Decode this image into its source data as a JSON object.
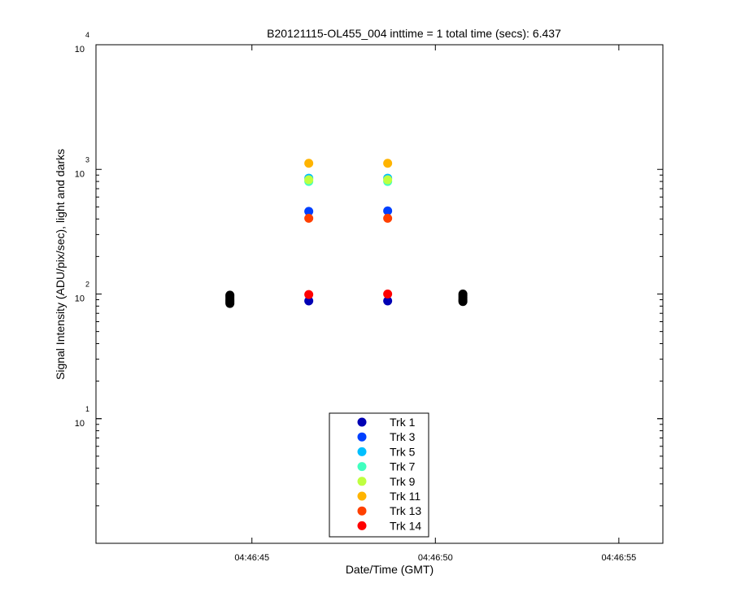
{
  "chart_data": {
    "type": "scatter",
    "title": "B20121115-OL455_004 inttime = 1 total time (secs): 6.437",
    "xlabel": "Date/Time (GMT)",
    "ylabel": "Signal Intensity (ADU/pix/sec), light and darks",
    "y_scale": "log",
    "ylim": [
      1,
      10000
    ],
    "x_units": "seconds after 04:46:00 GMT",
    "xlim": [
      40.75,
      56.2
    ],
    "x_ticks": [
      {
        "value": 45,
        "label": "04:46:45"
      },
      {
        "value": 50,
        "label": "04:46:50"
      },
      {
        "value": 55,
        "label": "04:46:55"
      }
    ],
    "y_ticks": [
      {
        "value": 10,
        "base": "10",
        "exp": "1"
      },
      {
        "value": 100,
        "base": "10",
        "exp": "2"
      },
      {
        "value": 1000,
        "base": "10",
        "exp": "3"
      },
      {
        "value": 10000,
        "base": "10",
        "exp": "4"
      }
    ],
    "legend_position": "bottom-center",
    "series": [
      {
        "name": "Trk 1",
        "color": "#0000b4",
        "points": [
          [
            46.55,
            88
          ],
          [
            48.7,
            88
          ]
        ]
      },
      {
        "name": "Trk 3",
        "color": "#0040ff",
        "points": [
          [
            46.55,
            460
          ],
          [
            48.7,
            465
          ]
        ]
      },
      {
        "name": "Trk 5",
        "color": "#00bfff",
        "points": [
          [
            46.55,
            850
          ],
          [
            48.7,
            850
          ]
        ]
      },
      {
        "name": "Trk 7",
        "color": "#40ffbf",
        "points": [
          [
            46.55,
            800
          ],
          [
            48.7,
            800
          ]
        ]
      },
      {
        "name": "Trk 9",
        "color": "#bfff40",
        "points": [
          [
            46.55,
            825
          ],
          [
            48.7,
            825
          ]
        ]
      },
      {
        "name": "Trk 11",
        "color": "#ffb400",
        "points": [
          [
            46.55,
            1120
          ],
          [
            48.7,
            1120
          ]
        ]
      },
      {
        "name": "Trk 13",
        "color": "#ff4000",
        "points": [
          [
            46.55,
            405
          ],
          [
            48.7,
            405
          ]
        ]
      },
      {
        "name": "Trk 14",
        "color": "#ff0000",
        "points": [
          [
            46.55,
            99
          ],
          [
            48.7,
            100
          ]
        ]
      }
    ],
    "darks": {
      "color": "#000000",
      "points": [
        [
          44.4,
          84
        ],
        [
          44.4,
          86
        ],
        [
          44.4,
          88
        ],
        [
          44.4,
          90
        ],
        [
          44.4,
          93
        ],
        [
          44.4,
          96
        ],
        [
          44.4,
          98
        ],
        [
          50.75,
          87
        ],
        [
          50.75,
          89
        ],
        [
          50.75,
          91
        ],
        [
          50.75,
          94
        ],
        [
          50.75,
          97
        ],
        [
          50.75,
          100
        ]
      ]
    }
  }
}
